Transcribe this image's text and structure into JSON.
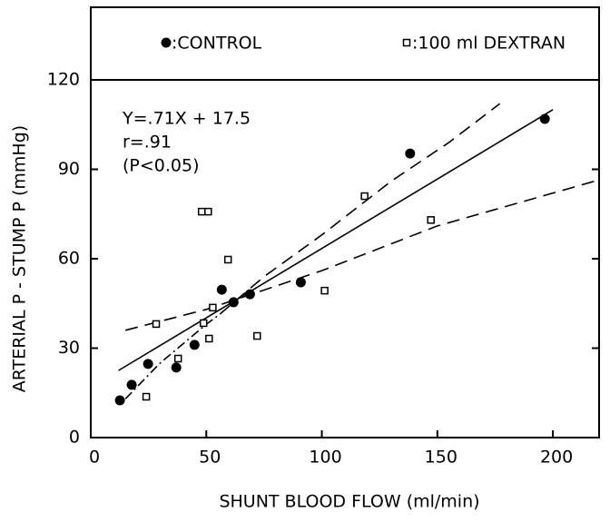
{
  "chart_data": {
    "type": "scatter",
    "xlabel": "SHUNT BLOOD FLOW (ml/min)",
    "ylabel": "ARTERIAL P - STUMP P (mmHg)",
    "xlim": [
      0,
      220
    ],
    "ylim": [
      0,
      120
    ],
    "xticks": [
      0,
      50,
      100,
      150,
      200
    ],
    "yticks": [
      0,
      30,
      60,
      90,
      120
    ],
    "annotations": [
      "Y=.71X + 17.5",
      "r=.91",
      "(P<0.05)"
    ],
    "series": [
      {
        "name": ":CONTROL",
        "marker": "circle",
        "color": "#000000",
        "x": [
          12.6,
          17.7,
          24.8,
          37.0,
          44.9,
          56.7,
          61.8,
          68.9,
          90.9,
          138.2,
          196.5
        ],
        "y": [
          12.5,
          17.7,
          24.7,
          23.5,
          31.1,
          49.6,
          45.4,
          48.1,
          52.1,
          95.3,
          106.9
        ]
      },
      {
        "name": ":100 ml DEXTRAN",
        "marker": "square",
        "color": "#000000",
        "x": [
          24.0,
          28.3,
          37.8,
          48.8,
          52.8,
          51.2,
          48.0,
          50.8,
          59.4,
          72.0,
          101.2,
          118.5,
          147.2
        ],
        "y": [
          13.7,
          38.1,
          26.5,
          38.4,
          43.6,
          33.2,
          75.8,
          75.8,
          59.7,
          34.1,
          49.3,
          81,
          73
        ]
      }
    ],
    "curves": [
      {
        "style": "solid",
        "x": [
          12,
          200
        ],
        "y": [
          22.5,
          110
        ]
      },
      {
        "style": "dashdot",
        "x": [
          15,
          30,
          50,
          56
        ],
        "y": [
          13,
          25,
          38,
          41.5
        ]
      },
      {
        "style": "dashed",
        "x": [
          56,
          75,
          100,
          130,
          155,
          177
        ],
        "y": [
          41.5,
          54,
          68,
          86,
          99,
          112
        ]
      },
      {
        "style": "dashed",
        "x": [
          15,
          50,
          100,
          150,
          218
        ],
        "y": [
          36,
          43,
          56,
          71,
          86
        ]
      }
    ]
  }
}
